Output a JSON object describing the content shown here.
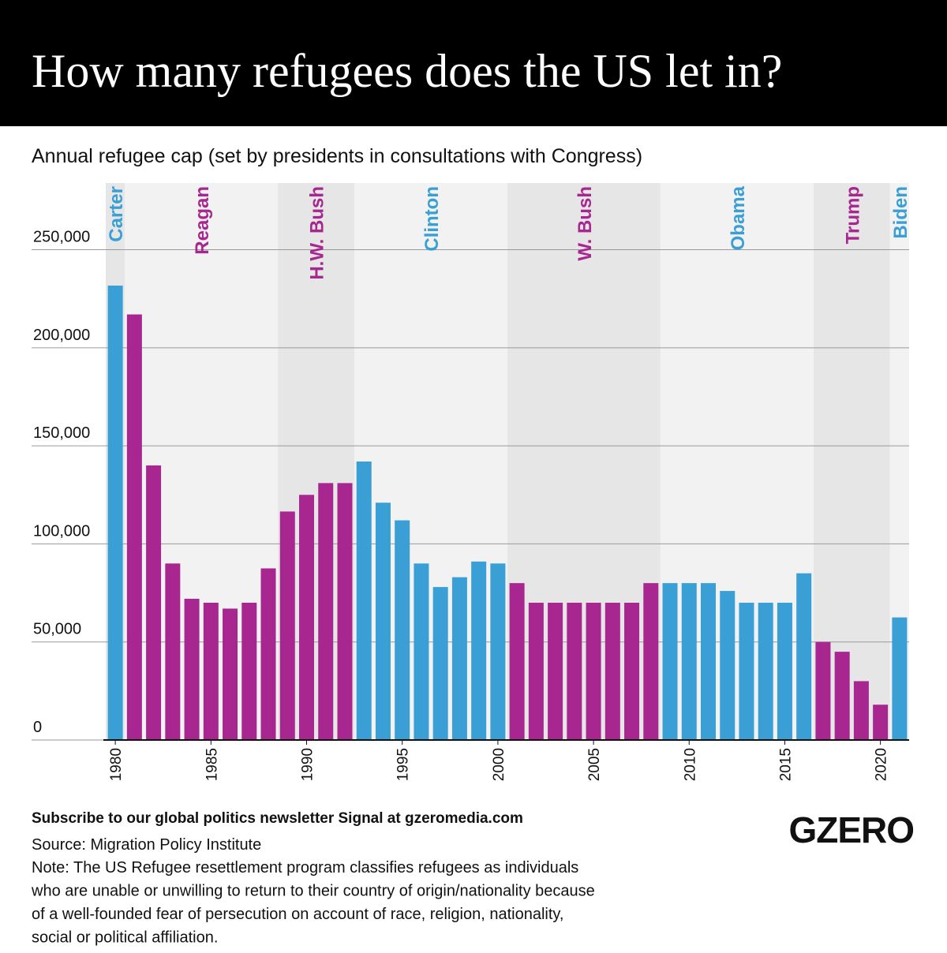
{
  "header": {
    "title": "How many refugees does the US let in?"
  },
  "chart_data": {
    "type": "bar",
    "subtitle": "Annual refugee cap (set by presidents in consultations with Congress)",
    "x": [
      1980,
      1981,
      1982,
      1983,
      1984,
      1985,
      1986,
      1987,
      1988,
      1989,
      1990,
      1991,
      1992,
      1993,
      1994,
      1995,
      1996,
      1997,
      1998,
      1999,
      2000,
      2001,
      2002,
      2003,
      2004,
      2005,
      2006,
      2007,
      2008,
      2009,
      2010,
      2011,
      2012,
      2013,
      2014,
      2015,
      2016,
      2017,
      2018,
      2019,
      2020,
      2021
    ],
    "values": [
      231700,
      217000,
      140000,
      90000,
      72000,
      70000,
      67000,
      70000,
      87500,
      116500,
      125000,
      131000,
      131000,
      142000,
      121000,
      112000,
      90000,
      78000,
      83000,
      91000,
      90000,
      80000,
      70000,
      70000,
      70000,
      70000,
      70000,
      70000,
      80000,
      80000,
      80000,
      80000,
      76000,
      70000,
      70000,
      70000,
      85000,
      50000,
      45000,
      30000,
      18000,
      62500
    ],
    "xlim": [
      1979.5,
      2021.5
    ],
    "xticks": [
      1980,
      1985,
      1990,
      1995,
      2000,
      2005,
      2010,
      2015,
      2020
    ],
    "ylim": [
      0,
      284000
    ],
    "yticks": [
      0,
      {
        "value": 50000,
        "label": "50,000"
      },
      {
        "value": 100000,
        "label": "100,000"
      },
      {
        "value": 150000,
        "label": "150,000"
      },
      {
        "value": 200000,
        "label": "200,000"
      },
      {
        "value": 250000,
        "label": "250,000"
      }
    ],
    "grid": true,
    "band_colors": [
      "#e6e6e6",
      "#f2f2f2"
    ],
    "presidents": [
      {
        "name": "Carter",
        "start": 1980,
        "end": 1980,
        "color": "#3a9fd5"
      },
      {
        "name": "Reagan",
        "start": 1981,
        "end": 1988,
        "color": "#a8268f"
      },
      {
        "name": "H.W. Bush",
        "start": 1989,
        "end": 1992,
        "color": "#a8268f"
      },
      {
        "name": "Clinton",
        "start": 1993,
        "end": 2000,
        "color": "#3a9fd5"
      },
      {
        "name": "W. Bush",
        "start": 2001,
        "end": 2008,
        "color": "#a8268f"
      },
      {
        "name": "Obama",
        "start": 2009,
        "end": 2016,
        "color": "#3a9fd5"
      },
      {
        "name": "Trump",
        "start": 2017,
        "end": 2020,
        "color": "#a8268f"
      },
      {
        "name": "Biden",
        "start": 2021,
        "end": 2021,
        "color": "#3a9fd5"
      }
    ]
  },
  "footer": {
    "signal": "Subscribe to our global politics newsletter Signal at gzeromedia.com",
    "source": "Source: Migration Policy Institute",
    "note": [
      "Note: The US Refugee resettlement program classifies refugees as individuals",
      "who are unable or unwilling to return to their country of origin/nationality because",
      "of a well-founded fear of persecution on account of race, religion, nationality,",
      "social or political affiliation."
    ],
    "logo": "GZERO"
  }
}
